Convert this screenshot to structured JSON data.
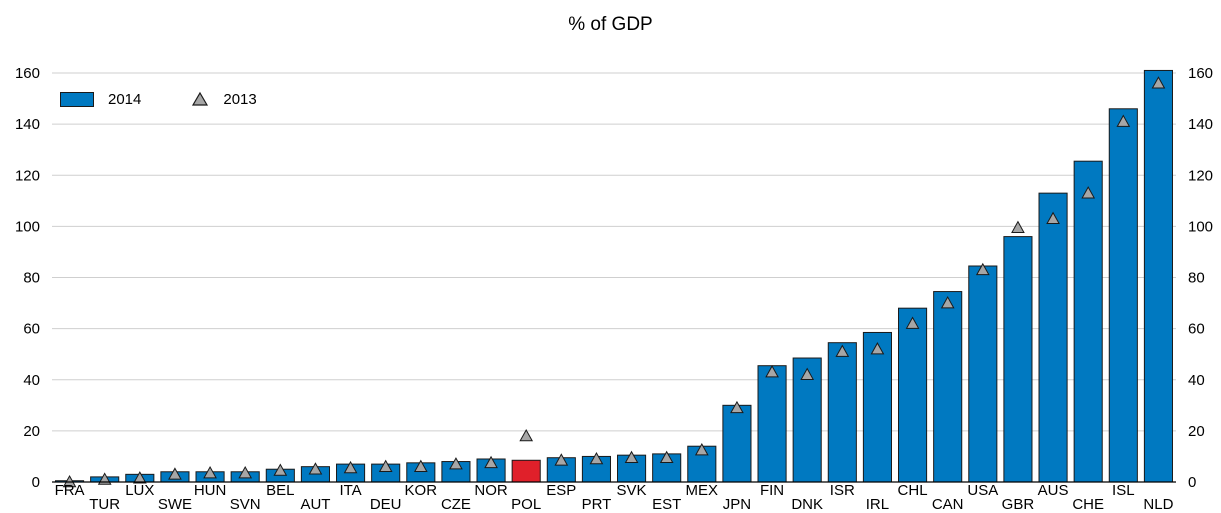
{
  "chart_data": {
    "type": "bar",
    "title": "% of GDP",
    "xlabel": "",
    "ylabel": "",
    "ylim": [
      0,
      160
    ],
    "yticks": [
      0,
      20,
      40,
      60,
      80,
      100,
      120,
      140,
      160
    ],
    "grid": true,
    "legend_position": "top-left",
    "categories": [
      "FRA",
      "TUR",
      "LUX",
      "SWE",
      "HUN",
      "SVN",
      "BEL",
      "AUT",
      "ITA",
      "DEU",
      "KOR",
      "CZE",
      "NOR",
      "POL",
      "ESP",
      "PRT",
      "SVK",
      "EST",
      "MEX",
      "JPN",
      "FIN",
      "DNK",
      "ISR",
      "IRL",
      "CHL",
      "CAN",
      "USA",
      "GBR",
      "AUS",
      "CHE",
      "ISL",
      "NLD"
    ],
    "highlight_category": "POL",
    "series": [
      {
        "name": "2014",
        "kind": "bar",
        "color": "#0079c1",
        "values": [
          0.5,
          2,
          3,
          4,
          4,
          4,
          5,
          6,
          7,
          7,
          7.5,
          8,
          9,
          8.5,
          9.5,
          10,
          10.5,
          11,
          14,
          30,
          45.5,
          48.5,
          54.5,
          58.5,
          68,
          74.5,
          84.5,
          96,
          113,
          125.5,
          146,
          161
        ]
      },
      {
        "name": "2013",
        "kind": "marker",
        "marker": "triangle",
        "color": "#a6a6a6",
        "values": [
          0,
          1,
          1.5,
          3,
          3.5,
          3.5,
          4.5,
          5,
          5.5,
          6,
          6,
          7,
          7.5,
          18,
          8.5,
          9,
          9.5,
          9.5,
          12.5,
          29,
          43,
          42,
          51,
          52,
          62,
          70,
          83,
          99.5,
          103,
          113,
          141,
          156
        ]
      }
    ],
    "colors": {
      "bar": "#0079c1",
      "highlight": "#e0202a",
      "marker": "#a6a6a6",
      "grid": "#cfcfcf"
    }
  }
}
